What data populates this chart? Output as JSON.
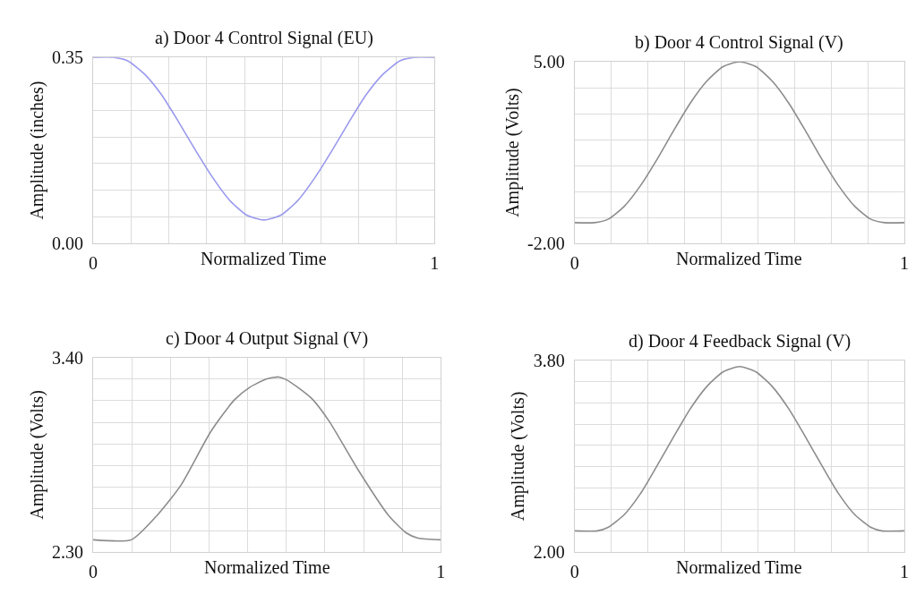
{
  "chart_data": [
    {
      "type": "line",
      "title": "a) Door 4 Control Signal (EU)",
      "xlabel": "Normalized Time",
      "ylabel": "Amplitude (inches)",
      "x": [
        0,
        0.06,
        0.1,
        0.15,
        0.2,
        0.25,
        0.3,
        0.35,
        0.4,
        0.45,
        0.5,
        0.55,
        0.6,
        0.65,
        0.7,
        0.75,
        0.8,
        0.85,
        0.9,
        0.94,
        1
      ],
      "series": [
        {
          "color": "#9999ee",
          "values": [
            0.35,
            0.35,
            0.344,
            0.319,
            0.28,
            0.229,
            0.175,
            0.124,
            0.081,
            0.053,
            0.044,
            0.053,
            0.081,
            0.124,
            0.175,
            0.229,
            0.28,
            0.319,
            0.344,
            0.35,
            0.35
          ]
        }
      ],
      "xlim": [
        0,
        1
      ],
      "xticks": [
        0,
        {
          "value": 0.111,
          "label": null
        },
        {
          "value": 0.222,
          "label": null
        },
        {
          "value": 0.333,
          "label": null
        },
        {
          "value": 0.444,
          "label": null
        },
        {
          "value": 0.556,
          "label": null
        },
        {
          "value": 0.667,
          "label": null
        },
        {
          "value": 0.778,
          "label": null
        },
        {
          "value": 0.889,
          "label": null
        },
        1
      ],
      "ylim": [
        0,
        0.35
      ],
      "yticks": [
        {
          "value": 0,
          "label": "0.00"
        },
        {
          "value": 0.05,
          "label": null
        },
        {
          "value": 0.1,
          "label": null
        },
        {
          "value": 0.15,
          "label": null
        },
        {
          "value": 0.2,
          "label": null
        },
        {
          "value": 0.25,
          "label": null
        },
        {
          "value": 0.3,
          "label": null
        },
        0.35
      ],
      "grid": true
    },
    {
      "type": "line",
      "title": "b) Door 4 Control Signal (V)",
      "xlabel": "Normalized Time",
      "ylabel": "Amplitude (Volts)",
      "x": [
        0,
        0.06,
        0.1,
        0.15,
        0.2,
        0.25,
        0.3,
        0.35,
        0.4,
        0.45,
        0.5,
        0.55,
        0.6,
        0.65,
        0.7,
        0.75,
        0.8,
        0.85,
        0.9,
        0.94,
        1
      ],
      "series": [
        {
          "color": "#8c8c8c",
          "values": [
            -1.2,
            -1.2,
            -1.08,
            -0.58,
            0.23,
            1.24,
            2.34,
            3.39,
            4.24,
            4.81,
            5.0,
            4.81,
            4.24,
            3.39,
            2.34,
            1.24,
            0.23,
            -0.58,
            -1.08,
            -1.2,
            -1.2
          ]
        }
      ],
      "xlim": [
        0,
        1
      ],
      "xticks": [
        0,
        {
          "value": 0.111,
          "label": null
        },
        {
          "value": 0.222,
          "label": null
        },
        {
          "value": 0.333,
          "label": null
        },
        {
          "value": 0.444,
          "label": null
        },
        {
          "value": 0.556,
          "label": null
        },
        {
          "value": 0.667,
          "label": null
        },
        {
          "value": 0.778,
          "label": null
        },
        {
          "value": 0.889,
          "label": null
        },
        1
      ],
      "ylim": [
        -2,
        5
      ],
      "yticks": [
        {
          "value": -2,
          "label": "-2.00"
        },
        {
          "value": -1,
          "label": null
        },
        {
          "value": 0,
          "label": null
        },
        {
          "value": 1,
          "label": null
        },
        {
          "value": 2,
          "label": null
        },
        {
          "value": 3,
          "label": null
        },
        {
          "value": 4,
          "label": null
        },
        {
          "value": 5,
          "label": "5.00"
        }
      ],
      "grid": true
    },
    {
      "type": "line",
      "title": "c) Door 4 Output Signal (V)",
      "xlabel": "Normalized Time",
      "ylabel": "Amplitude (Volts)",
      "x": [
        0,
        0.11,
        0.185,
        0.253,
        0.338,
        0.406,
        0.449,
        0.5,
        0.534,
        0.56,
        0.628,
        0.679,
        0.764,
        0.849,
        0.9,
        0.934,
        1
      ],
      "series": [
        {
          "color": "#8c8c8c",
          "values": [
            2.37,
            2.37,
            2.51,
            2.68,
            2.98,
            3.16,
            3.23,
            3.28,
            3.29,
            3.27,
            3.17,
            3.04,
            2.76,
            2.51,
            2.41,
            2.38,
            2.37
          ]
        }
      ],
      "xlim": [
        0,
        1
      ],
      "xticks": [
        0,
        {
          "value": 0.111,
          "label": null
        },
        {
          "value": 0.222,
          "label": null
        },
        {
          "value": 0.333,
          "label": null
        },
        {
          "value": 0.444,
          "label": null
        },
        {
          "value": 0.556,
          "label": null
        },
        {
          "value": 0.667,
          "label": null
        },
        {
          "value": 0.778,
          "label": null
        },
        {
          "value": 0.889,
          "label": null
        },
        1
      ],
      "ylim": [
        2.3,
        3.4
      ],
      "yticks": [
        {
          "value": 2.3,
          "label": "2.30"
        },
        {
          "value": 2.422,
          "label": null
        },
        {
          "value": 2.544,
          "label": null
        },
        {
          "value": 2.667,
          "label": null
        },
        {
          "value": 2.789,
          "label": null
        },
        {
          "value": 2.911,
          "label": null
        },
        {
          "value": 3.033,
          "label": null
        },
        {
          "value": 3.156,
          "label": null
        },
        {
          "value": 3.278,
          "label": null
        },
        {
          "value": 3.4,
          "label": "3.40"
        }
      ],
      "grid": true
    },
    {
      "type": "line",
      "title": "d) Door 4 Feedback Signal (V)",
      "xlabel": "Normalized Time",
      "ylabel": "Amplitude (Volts)",
      "x": [
        0,
        0.07,
        0.1,
        0.15,
        0.2,
        0.25,
        0.3,
        0.35,
        0.4,
        0.45,
        0.5,
        0.55,
        0.6,
        0.65,
        0.7,
        0.75,
        0.8,
        0.85,
        0.9,
        0.93,
        1
      ],
      "series": [
        {
          "color": "#8c8c8c",
          "values": [
            2.2,
            2.2,
            2.23,
            2.35,
            2.55,
            2.81,
            3.08,
            3.34,
            3.55,
            3.69,
            3.74,
            3.69,
            3.55,
            3.34,
            3.08,
            2.81,
            2.55,
            2.35,
            2.23,
            2.2,
            2.2
          ]
        }
      ],
      "xlim": [
        0,
        1
      ],
      "xticks": [
        0,
        {
          "value": 0.111,
          "label": null
        },
        {
          "value": 0.222,
          "label": null
        },
        {
          "value": 0.333,
          "label": null
        },
        {
          "value": 0.444,
          "label": null
        },
        {
          "value": 0.556,
          "label": null
        },
        {
          "value": 0.667,
          "label": null
        },
        {
          "value": 0.778,
          "label": null
        },
        {
          "value": 0.889,
          "label": null
        },
        1
      ],
      "ylim": [
        2.0,
        3.8
      ],
      "yticks": [
        {
          "value": 2.0,
          "label": "2.00"
        },
        {
          "value": 2.2,
          "label": null
        },
        {
          "value": 2.4,
          "label": null
        },
        {
          "value": 2.6,
          "label": null
        },
        {
          "value": 2.8,
          "label": null
        },
        {
          "value": 3.0,
          "label": null
        },
        {
          "value": 3.2,
          "label": null
        },
        {
          "value": 3.4,
          "label": null
        },
        {
          "value": 3.6,
          "label": null
        },
        {
          "value": 3.8,
          "label": "3.80"
        }
      ],
      "grid": true
    }
  ]
}
